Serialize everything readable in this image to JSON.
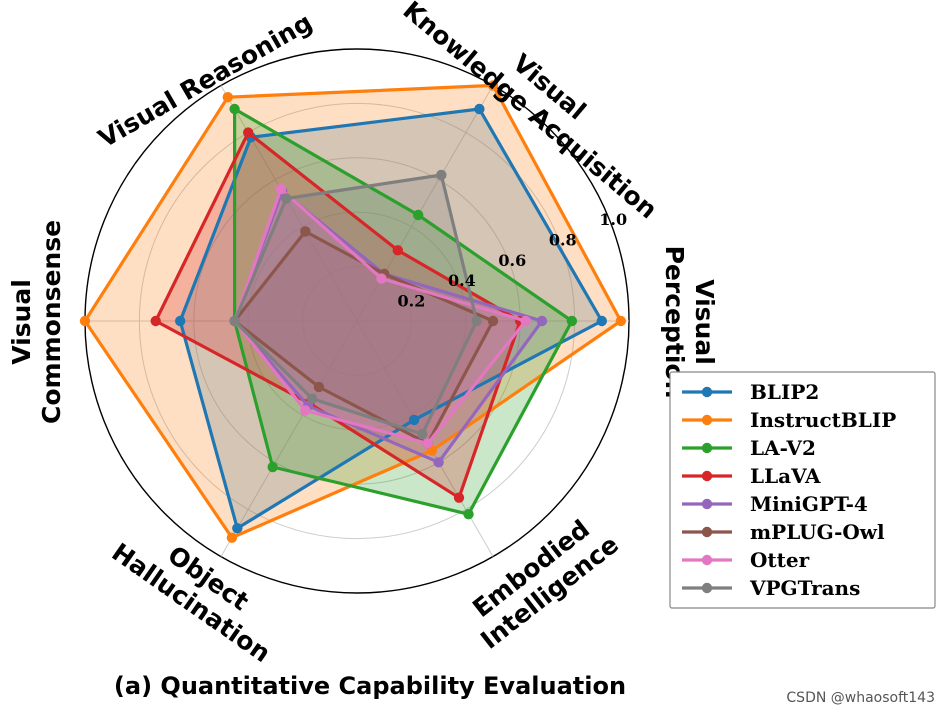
{
  "caption": "(a) Quantitative Capability Evaluation",
  "watermark": "CSDN @whaosoft143",
  "chart_data": {
    "type": "radar",
    "title": "",
    "axes": [
      {
        "id": "perception",
        "lines": [
          "Visual",
          "Perception"
        ]
      },
      {
        "id": "knowledge",
        "lines": [
          "Visual",
          "Knowledge Acquisition"
        ]
      },
      {
        "id": "reasoning",
        "lines": [
          "Visual Reasoning"
        ]
      },
      {
        "id": "commonsense",
        "lines": [
          "Visual",
          "Commonsense"
        ]
      },
      {
        "id": "hallucination",
        "lines": [
          "Object",
          "Hallucination"
        ]
      },
      {
        "id": "embodied",
        "lines": [
          "Embodied",
          "Intelligence"
        ]
      }
    ],
    "rlim": [
      0,
      1.0
    ],
    "ticks": [
      {
        "value": 0.2,
        "label": "0.2"
      },
      {
        "value": 0.4,
        "label": "0.4"
      },
      {
        "value": 0.6,
        "label": "0.6"
      },
      {
        "value": 0.8,
        "label": "0.8"
      },
      {
        "value": 1.0,
        "label": "1.0"
      }
    ],
    "legend_position": "right",
    "series": [
      {
        "name": "BLIP2",
        "color": "#1f77b4",
        "values": [
          0.9,
          0.9,
          0.78,
          0.65,
          0.88,
          0.42
        ]
      },
      {
        "name": "InstructBLIP",
        "color": "#ff7f0e",
        "values": [
          0.97,
          1.0,
          0.95,
          1.0,
          0.92,
          0.55
        ]
      },
      {
        "name": "LA-V2",
        "color": "#2ca02c",
        "values": [
          0.79,
          0.45,
          0.9,
          0.45,
          0.62,
          0.82
        ]
      },
      {
        "name": "LLaVA",
        "color": "#d62728",
        "values": [
          0.6,
          0.3,
          0.8,
          0.74,
          0.35,
          0.75
        ]
      },
      {
        "name": "MiniGPT-4",
        "color": "#9467bd",
        "values": [
          0.68,
          0.2,
          0.55,
          0.45,
          0.36,
          0.6
        ]
      },
      {
        "name": "mPLUG-Owl",
        "color": "#8c564b",
        "values": [
          0.5,
          0.2,
          0.38,
          0.45,
          0.28,
          0.52
        ]
      },
      {
        "name": "Otter",
        "color": "#e377c2",
        "values": [
          0.62,
          0.18,
          0.56,
          0.45,
          0.38,
          0.52
        ]
      },
      {
        "name": "VPGTrans",
        "color": "#7f7f7f",
        "values": [
          0.44,
          0.62,
          0.52,
          0.45,
          0.33,
          0.48
        ]
      }
    ]
  }
}
